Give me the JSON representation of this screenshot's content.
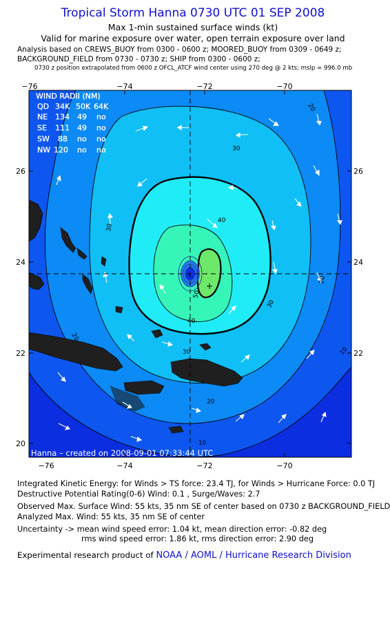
{
  "header": {
    "title": "Tropical Storm Hanna 0730 UTC 01 SEP 2008",
    "subtitle1": "Max 1-min sustained surface winds (kt)",
    "subtitle2": "Valid for marine exposure over water, open terrain exposure over land",
    "analysis_line1": "Analysis based on  CREWS_BUOY from 0300 - 0600 z;  MOORED_BUOY from 0309 - 0649 z;",
    "analysis_line2": "BACKGROUND_FIELD from 0730 - 0730 z;  SHIP from 0300 - 0600 z;",
    "analysis_line3": "0730 z position extrapolated from 0600 z OFCL_ATCF wind center using 270 deg @ 2 kts; mslp = 996.0 mb"
  },
  "map": {
    "lon_ticks": [
      "−76",
      "−74",
      "−72",
      "−70"
    ],
    "lat_ticks": [
      "26",
      "24",
      "22",
      "20"
    ],
    "center_lon": -72.3,
    "center_lat": 23.7,
    "contour_labels": [
      "20",
      "30",
      "30",
      "40",
      "50",
      "20",
      "20",
      "30",
      "30",
      "40",
      "20",
      "10",
      "10"
    ],
    "credit": "Hanna – created on 2008-09-01 07:33:44 UTC",
    "colors": {
      "outer": "#0b2ee0",
      "band10": "#0d56f0",
      "band20": "#0c8af5",
      "band30": "#10bff5",
      "band40": "#20ecf8",
      "band50": "#35f5b8",
      "core": "#6ee86a",
      "land": "#1f1f1f",
      "arrow": "#ffffff"
    }
  },
  "wind_radii": {
    "title": "WIND RADII (NM)",
    "header": [
      "QD",
      "34K",
      "50K",
      "64K"
    ],
    "rows": [
      [
        "NE",
        "134",
        "49",
        "no"
      ],
      [
        "SE",
        "111",
        "49",
        "no"
      ],
      [
        "SW",
        "88",
        "no",
        "no"
      ],
      [
        "NW",
        "120",
        "no",
        "no"
      ]
    ]
  },
  "footer": {
    "ike": "Integrated Kinetic Energy:  for Winds > TS force: 23.4 TJ,  for Winds > Hurricane Force: 0.0 TJ",
    "dpr": "Destructive Potential Rating(0-6)   Wind: 0.1 , Surge/Waves: 2.7",
    "observed": "Observed Max. Surface Wind: 55 kts, 35 nm SE of center based on 0730 z BACKGROUND_FIELD",
    "analyzed": "Analyzed Max. Wind: 55 kts, 35 nm SE of center",
    "uncert1": "Uncertainty -> mean wind speed error: 1.04 kt,   mean direction error:  -0.82 deg",
    "uncert2": "rms wind speed error: 1.86 kt,   rms direction error: 2.90 deg",
    "product_prefix": "Experimental research product of ",
    "product_org": "NOAA / AOML / Hurricane Research Division"
  }
}
